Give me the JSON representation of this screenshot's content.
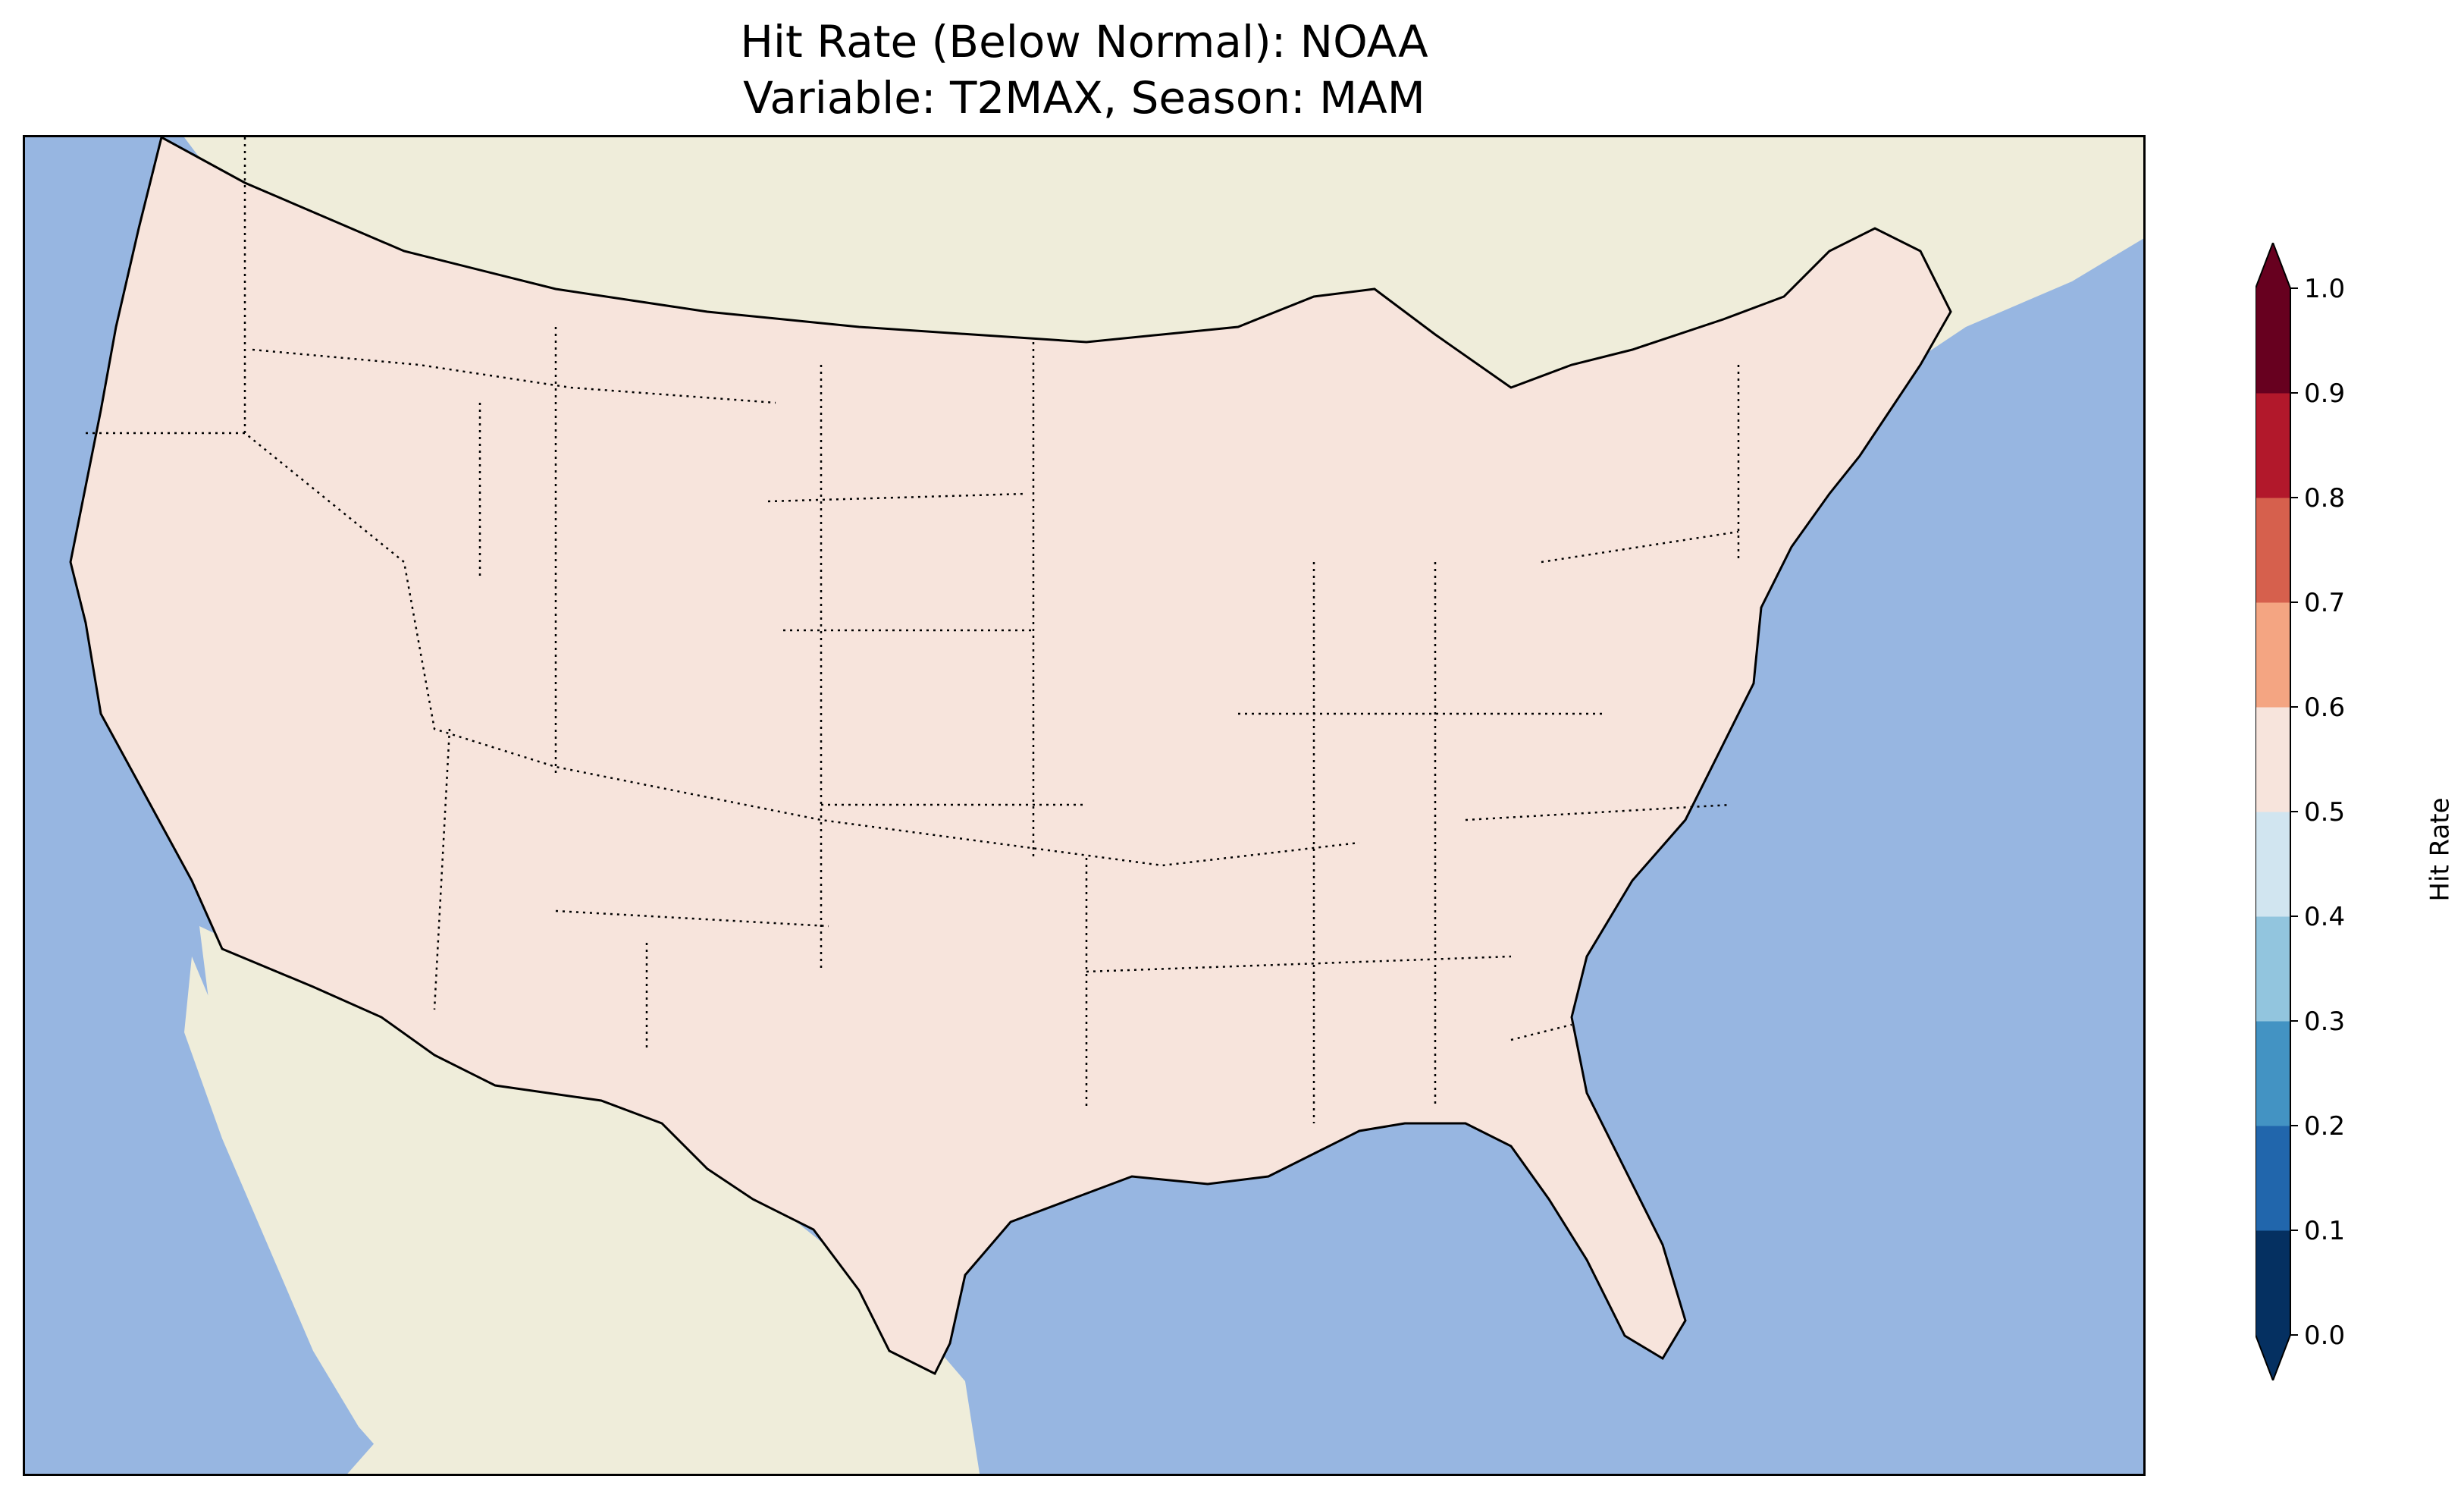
{
  "title": {
    "line1": "Hit Rate (Below Normal): NOAA",
    "line2": "Variable: T2MAX, Season: MAM"
  },
  "colorbar": {
    "label": "Hit Rate",
    "extend": "both",
    "levels": [
      "0.0",
      "0.1",
      "0.2",
      "0.3",
      "0.4",
      "0.5",
      "0.6",
      "0.7",
      "0.8",
      "0.9",
      "1.0"
    ],
    "colors": [
      "#053061",
      "#2166ac",
      "#4393c3",
      "#92c5de",
      "#d1e5f0",
      "#f7e4dc",
      "#f4a582",
      "#d6604d",
      "#b2182b",
      "#67001f"
    ],
    "under_color": "#053061",
    "over_color": "#67001f"
  },
  "map": {
    "ocean_color": "#97b6e1",
    "land_color": "#efedda",
    "lakes_color": "#97b6e1",
    "region_description_colors": {
      "west_coast": "#d6604d",
      "northwest_interior": "#92c5de",
      "rockies": "#4393c3",
      "north_plains": "#f4a582",
      "texas": "#d6604d",
      "southeast": "#f7e4dc",
      "florida": "#4393c3",
      "northeast": "#d6604d"
    }
  }
}
